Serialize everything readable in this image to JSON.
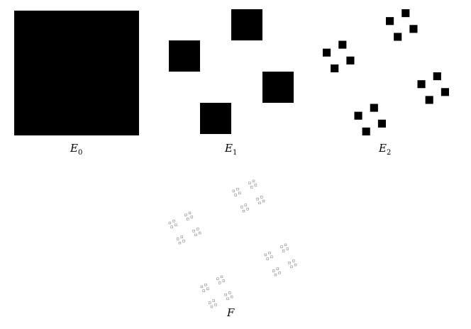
{
  "figure": {
    "iterations": [
      {
        "name": "E0",
        "letter": "E",
        "subscript": "0",
        "level": 0
      },
      {
        "name": "E1",
        "letter": "E",
        "subscript": "1",
        "level": 1
      },
      {
        "name": "E2",
        "letter": "E",
        "subscript": "2",
        "level": 2
      }
    ],
    "limit": {
      "name": "F",
      "letter": "F"
    }
  },
  "colors": {
    "fill": "#000000",
    "limit_stroke": "#8a8a8a",
    "background": "#ffffff"
  }
}
